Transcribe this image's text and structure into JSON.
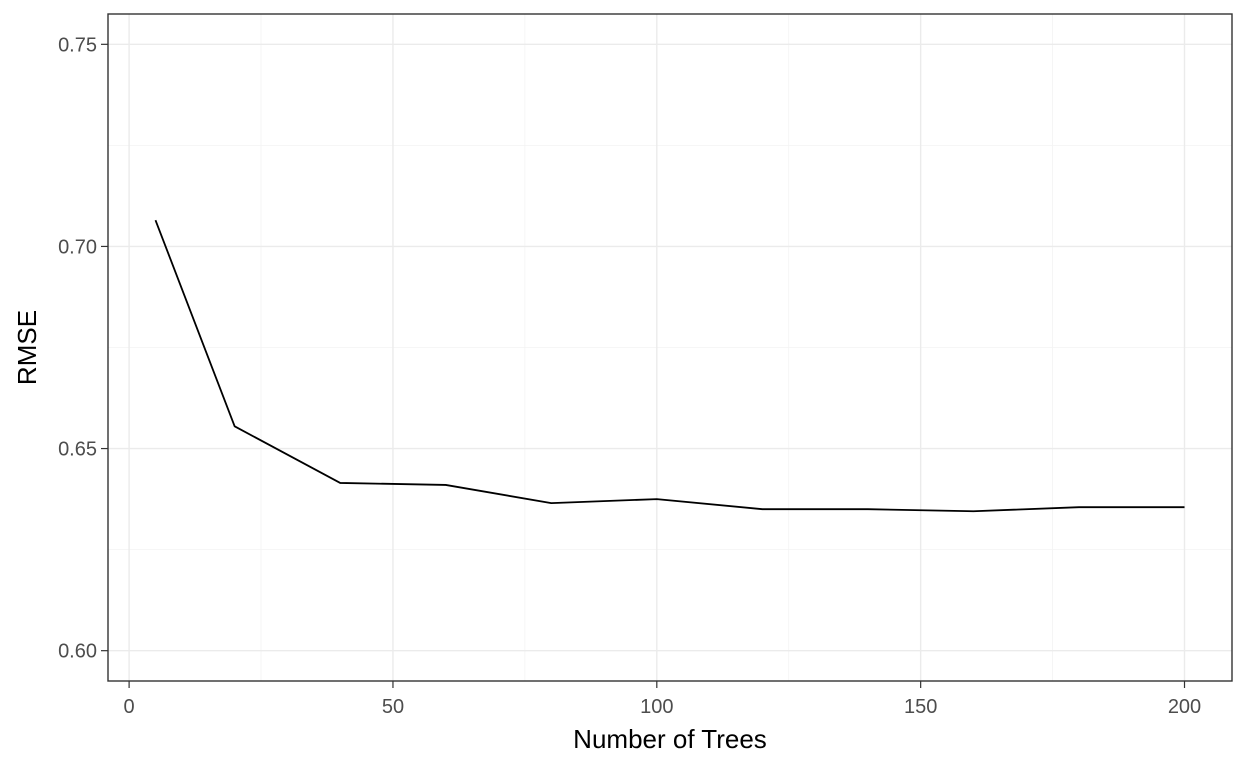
{
  "chart_data": {
    "type": "line",
    "title": "",
    "xlabel": "Number of Trees",
    "ylabel": "RMSE",
    "xlim": [
      -4,
      209
    ],
    "ylim": [
      0.5925,
      0.7575
    ],
    "xticks": [
      0,
      50,
      100,
      150,
      200
    ],
    "xtick_labels": [
      "0",
      "50",
      "100",
      "150",
      "200"
    ],
    "yticks": [
      0.6,
      0.65,
      0.7,
      0.75
    ],
    "ytick_labels": [
      "0.60",
      "0.65",
      "0.70",
      "0.75"
    ],
    "xminor": [
      25,
      75,
      125,
      175
    ],
    "yminor": [
      0.625,
      0.675,
      0.725
    ],
    "grid": true,
    "legend": "none",
    "series": [
      {
        "color": "#000000",
        "x": [
          5,
          20,
          40,
          60,
          80,
          100,
          120,
          140,
          160,
          180,
          200
        ],
        "y": [
          0.7065,
          0.6555,
          0.6415,
          0.641,
          0.6365,
          0.6375,
          0.635,
          0.635,
          0.6345,
          0.6355,
          0.6355
        ]
      }
    ]
  }
}
